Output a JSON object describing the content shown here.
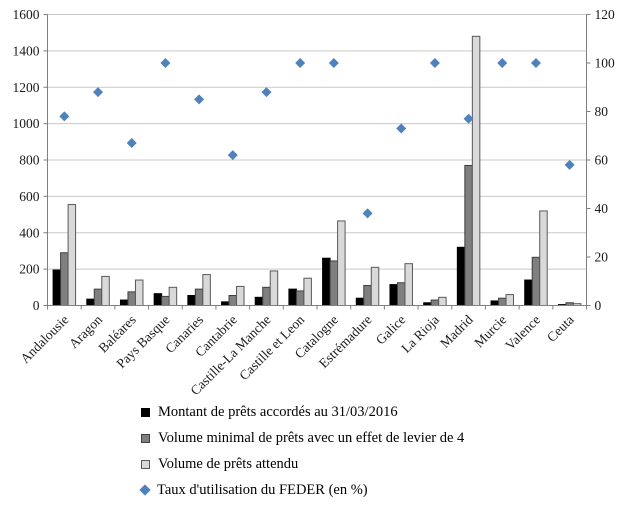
{
  "chart_data": {
    "type": "bar",
    "subtype": "grouped-bars-with-scatter-overlay",
    "title": "",
    "xlabel": "",
    "ylabel": "",
    "grid": true,
    "legend_position": "bottom-left",
    "categories": [
      "Andalousie",
      "Aragon",
      "Baléares",
      "Pays Basque",
      "Canaries",
      "Cantabrie",
      "Castille-La Manche",
      "Castille et Leon",
      "Catalogne",
      "Estrémadure",
      "Galice",
      "La Rioja",
      "Madrid",
      "Murcie",
      "Valence",
      "Ceuta"
    ],
    "series": [
      {
        "name": "Montant de prêts accordés au 31/03/2016",
        "type": "bar",
        "axis": "left",
        "color": "#000000",
        "border": "#000000",
        "values": [
          195,
          35,
          30,
          65,
          55,
          20,
          45,
          90,
          260,
          40,
          115,
          15,
          320,
          25,
          140,
          5
        ]
      },
      {
        "name": "Volume minimal de prêts avec un effet de levier de 4",
        "type": "bar",
        "axis": "left",
        "color": "#7f7f7f",
        "border": "#3f3f3f",
        "values": [
          290,
          90,
          75,
          50,
          90,
          55,
          100,
          80,
          245,
          110,
          125,
          30,
          770,
          40,
          265,
          15
        ]
      },
      {
        "name": "Volume de prêts attendu",
        "type": "bar",
        "axis": "left",
        "color": "#d9d9d9",
        "border": "#595959",
        "values": [
          555,
          160,
          140,
          100,
          170,
          105,
          190,
          150,
          465,
          210,
          230,
          45,
          1480,
          60,
          520,
          10
        ]
      },
      {
        "name": "Taux d'utilisation du FEDER (en %)",
        "type": "scatter",
        "axis": "right",
        "color": "#4f81bd",
        "values": [
          78,
          88,
          67,
          100,
          85,
          62,
          88,
          100,
          100,
          38,
          73,
          100,
          77,
          100,
          100,
          58
        ]
      }
    ],
    "left_axis": {
      "min": 0,
      "max": 1600,
      "step": 200,
      "ticks": [
        "0",
        "200",
        "400",
        "600",
        "800",
        "1000",
        "1200",
        "1400",
        "1600"
      ]
    },
    "right_axis": {
      "min": 0,
      "max": 120,
      "step": 20,
      "ticks": [
        "0",
        "20",
        "40",
        "60",
        "80",
        "100",
        "120"
      ]
    },
    "colors": {
      "gridline": "#c9c9c9",
      "axis": "#7f7f7f",
      "text": "#1a1a1a",
      "background": "#ffffff"
    }
  }
}
